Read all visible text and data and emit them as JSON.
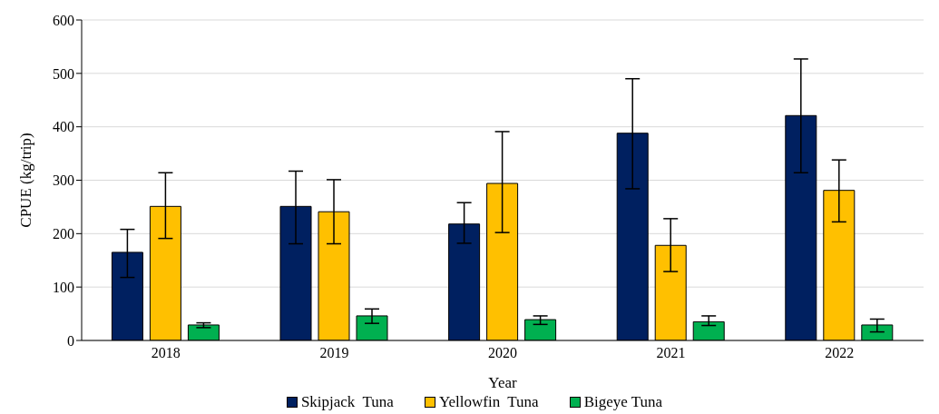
{
  "chart_data": {
    "type": "bar",
    "xlabel": "Year",
    "ylabel": "CPUE  (kg/trip)",
    "categories": [
      "2018",
      "2019",
      "2020",
      "2021",
      "2022"
    ],
    "series": [
      {
        "name": "Skipjack  Tuna",
        "color": "#002060",
        "values": [
          165,
          251,
          218,
          388,
          421
        ],
        "errors": [
          [
            118,
            208
          ],
          [
            181,
            317
          ],
          [
            182,
            258
          ],
          [
            284,
            490
          ],
          [
            314,
            527
          ]
        ]
      },
      {
        "name": "Yellowfin  Tuna",
        "color": "#ffc000",
        "values": [
          251,
          241,
          294,
          178,
          281
        ],
        "errors": [
          [
            191,
            314
          ],
          [
            181,
            301
          ],
          [
            202,
            391
          ],
          [
            129,
            228
          ],
          [
            222,
            338
          ]
        ]
      },
      {
        "name": "Bigeye Tuna",
        "color": "#00b050",
        "values": [
          29,
          46,
          39,
          35,
          29
        ],
        "errors": [
          [
            24,
            33
          ],
          [
            32,
            59
          ],
          [
            30,
            46
          ],
          [
            28,
            46
          ],
          [
            16,
            40
          ]
        ]
      }
    ],
    "ylim": [
      0,
      600
    ],
    "yticks": [
      0,
      100,
      200,
      300,
      400,
      500,
      600
    ],
    "grid": "y",
    "legend": "bottom"
  }
}
